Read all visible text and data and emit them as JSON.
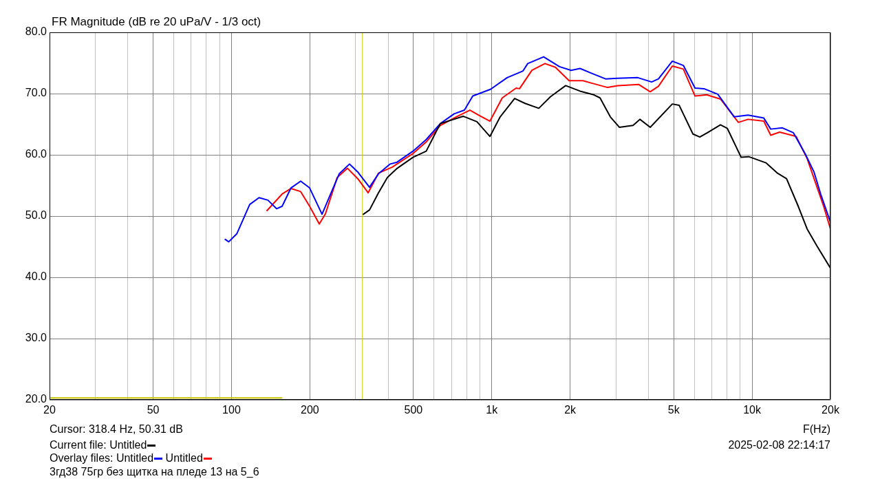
{
  "chart_data": {
    "type": "line",
    "title": "FR Magnitude (dB re 20 uPa/V - 1/3 oct)",
    "xlabel": "F(Hz)",
    "log": "x",
    "grid": true,
    "legend": "bottom left",
    "marker": "none",
    "line_style": "solid",
    "xlim": [
      20,
      20000
    ],
    "ylim": [
      20,
      80
    ],
    "xticks": [
      {
        "value": 20,
        "label": "20"
      },
      {
        "value": 30,
        "label": null
      },
      {
        "value": 40,
        "label": null
      },
      {
        "value": 50,
        "label": "50"
      },
      {
        "value": 60,
        "label": null
      },
      {
        "value": 70,
        "label": null
      },
      {
        "value": 80,
        "label": null
      },
      {
        "value": 90,
        "label": null
      },
      {
        "value": 100,
        "label": "100"
      },
      {
        "value": 200,
        "label": "200"
      },
      {
        "value": 300,
        "label": null
      },
      {
        "value": 400,
        "label": null
      },
      {
        "value": 500,
        "label": "500"
      },
      {
        "value": 600,
        "label": null
      },
      {
        "value": 700,
        "label": null
      },
      {
        "value": 800,
        "label": null
      },
      {
        "value": 900,
        "label": null
      },
      {
        "value": 1000,
        "label": "1k"
      },
      {
        "value": 2000,
        "label": "2k"
      },
      {
        "value": 3000,
        "label": null
      },
      {
        "value": 4000,
        "label": null
      },
      {
        "value": 5000,
        "label": "5k"
      },
      {
        "value": 6000,
        "label": null
      },
      {
        "value": 7000,
        "label": null
      },
      {
        "value": 8000,
        "label": null
      },
      {
        "value": 9000,
        "label": null
      },
      {
        "value": 10000,
        "label": "10k"
      },
      {
        "value": 20000,
        "label": "20k"
      }
    ],
    "yticks": [
      {
        "value": 20,
        "label": "20.0"
      },
      {
        "value": 30,
        "label": "30.0"
      },
      {
        "value": 40,
        "label": "40.0"
      },
      {
        "value": 50,
        "label": "50.0"
      },
      {
        "value": 60,
        "label": "60.0"
      },
      {
        "value": 70,
        "label": "70.0"
      },
      {
        "value": 80,
        "label": "80.0"
      }
    ],
    "ref_lines": [
      {
        "axis": "x",
        "value": 318.4,
        "color": "#c8c800"
      }
    ],
    "annotations": [
      "Cursor: 318.4 Hz, 50.31 dB",
      "Current file:",
      "Overlay files:",
      "2025-02-08  22:14:17",
      "3гд38 75гр без щитка на пледе 13 на 5_6"
    ],
    "series": [
      {
        "name": "Untitled",
        "color": "#000000",
        "x": [
          321,
          339,
          367,
          397,
          433,
          498,
          560,
          634,
          776,
          877,
          984,
          1077,
          1224,
          1342,
          1516,
          1681,
          1922,
          2183,
          2466,
          2605,
          2853,
          3090,
          3488,
          3707,
          4061,
          4937,
          5244,
          5926,
          6296,
          6733,
          7561,
          8036,
          9077,
          9705,
          11300,
          12520,
          13560,
          15040,
          16270,
          17700,
          20000
        ],
        "values": [
          50.3,
          51.0,
          53.8,
          56.3,
          57.8,
          59.6,
          60.6,
          65.1,
          66.3,
          65.4,
          63.0,
          66.2,
          69.2,
          68.4,
          67.6,
          69.5,
          71.3,
          70.4,
          69.8,
          69.3,
          66.2,
          64.5,
          64.8,
          65.8,
          64.5,
          68.3,
          68.1,
          63.4,
          62.9,
          63.6,
          64.9,
          64.3,
          59.6,
          59.7,
          58.7,
          57.0,
          56.1,
          51.6,
          47.9,
          45.2,
          41.5
        ]
      },
      {
        "name": "Untitled",
        "color": "#0000ff",
        "x": [
          94.6,
          97.6,
          104.8,
          117.5,
          127.6,
          138,
          149,
          156.5,
          169.3,
          184.4,
          199.6,
          222.8,
          235.4,
          259.4,
          284.1,
          305.6,
          339,
          367,
          407,
          432.5,
          498,
          560,
          634,
          717,
          785,
          845,
          989,
          1145,
          1318,
          1374,
          1582,
          1820,
          2017,
          2183,
          2422,
          2735,
          3034,
          3640,
          4111,
          4368,
          4937,
          5443,
          6036,
          6532,
          7379,
          8540,
          9646,
          11090,
          11790,
          13070,
          14410,
          15980,
          17290,
          18370,
          20000
        ],
        "values": [
          46.2,
          45.8,
          47.1,
          51.9,
          53.0,
          52.6,
          51.2,
          51.6,
          54.6,
          55.7,
          54.6,
          50.3,
          52.7,
          56.9,
          58.5,
          57.2,
          54.7,
          56.9,
          58.5,
          58.8,
          60.6,
          62.5,
          65.1,
          66.7,
          67.3,
          69.6,
          70.7,
          72.6,
          73.7,
          74.9,
          76.0,
          74.4,
          73.8,
          74.1,
          73.3,
          72.4,
          72.5,
          72.6,
          71.9,
          72.4,
          75.3,
          74.6,
          70.9,
          70.8,
          69.9,
          66.2,
          66.5,
          66.0,
          64.2,
          64.4,
          63.6,
          60.2,
          57.2,
          53.5,
          49.0
        ]
      },
      {
        "name": "Untitled",
        "color": "#ff0000",
        "x": [
          136.9,
          156.5,
          169.3,
          184.4,
          199.6,
          217.4,
          229.7,
          254.7,
          279,
          305.6,
          334.9,
          367,
          414.5,
          497.6,
          560,
          634,
          730,
          824,
          898,
          984,
          1097,
          1240,
          1278,
          1426,
          1600,
          1755,
          1981,
          2238,
          2422,
          2785,
          3050,
          3662,
          4061,
          4368,
          4937,
          5443,
          6036,
          6693,
          7561,
          8858,
          9646,
          11090,
          11790,
          12760,
          14760,
          16270,
          17700,
          18830,
          20000
        ],
        "values": [
          50.9,
          53.6,
          54.5,
          54.0,
          51.6,
          48.7,
          50.4,
          56.3,
          57.8,
          56.1,
          53.8,
          57.0,
          58.0,
          60.2,
          62.1,
          64.8,
          66.2,
          67.3,
          66.4,
          65.5,
          69.3,
          70.9,
          70.8,
          73.8,
          74.9,
          74.3,
          72.1,
          72.1,
          71.7,
          71.0,
          71.3,
          71.5,
          70.3,
          71.2,
          74.5,
          74.0,
          69.6,
          69.8,
          69.1,
          65.3,
          65.8,
          65.5,
          63.2,
          63.7,
          63.0,
          59.4,
          54.9,
          51.6,
          47.9
        ]
      },
      {
        "color": "#c8c800",
        "x": [
          20,
          156
        ],
        "values": [
          20.3,
          20.3
        ]
      }
    ]
  }
}
